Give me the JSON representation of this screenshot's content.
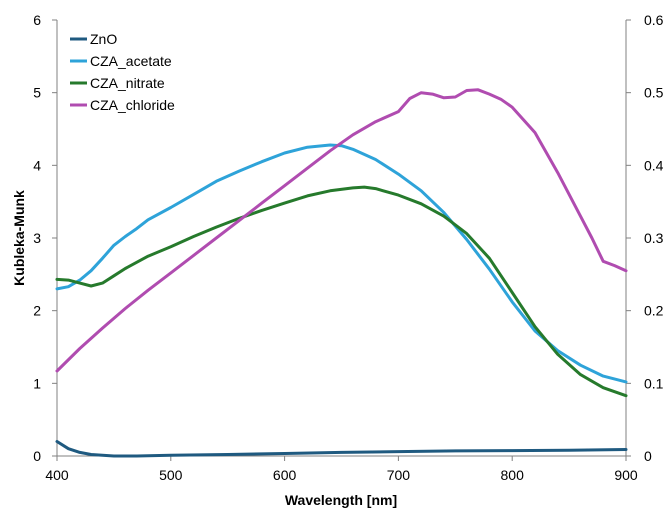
{
  "chart_data": {
    "type": "line",
    "title": "",
    "xlabel": "Wavelength [nm]",
    "ylabel": "Kubleka-Munk",
    "y2label": "",
    "xlim": [
      400,
      900
    ],
    "ylim": [
      0,
      6
    ],
    "y2lim": [
      0,
      0.6
    ],
    "grid": false,
    "legend_position": "top-left",
    "x_ticks": [
      "400",
      "500",
      "600",
      "700",
      "800",
      "900"
    ],
    "y_ticks": [
      "0",
      "1",
      "2",
      "3",
      "4",
      "5",
      "6"
    ],
    "y2_ticks": [
      "0",
      "0.1",
      "0.2",
      "0.3",
      "0.4",
      "0.5",
      "0.6"
    ],
    "series": [
      {
        "name": "ZnO",
        "color": "#1f5a80",
        "axis": "left",
        "x": [
          400,
          410,
          420,
          430,
          440,
          450,
          470,
          500,
          550,
          600,
          650,
          700,
          750,
          800,
          850,
          900
        ],
        "y": [
          0.2,
          0.1,
          0.05,
          0.02,
          0.01,
          0.0,
          0.0,
          0.01,
          0.02,
          0.035,
          0.05,
          0.06,
          0.07,
          0.075,
          0.08,
          0.09
        ]
      },
      {
        "name": "CZA_acetate",
        "color": "#2ea3d9",
        "axis": "left",
        "x": [
          400,
          410,
          420,
          430,
          440,
          450,
          460,
          470,
          480,
          500,
          520,
          540,
          560,
          580,
          600,
          620,
          640,
          650,
          660,
          680,
          700,
          720,
          740,
          760,
          780,
          800,
          820,
          840,
          860,
          880,
          900
        ],
        "y": [
          2.3,
          2.33,
          2.42,
          2.55,
          2.72,
          2.9,
          3.02,
          3.13,
          3.25,
          3.42,
          3.6,
          3.78,
          3.92,
          4.05,
          4.17,
          4.25,
          4.28,
          4.27,
          4.22,
          4.08,
          3.88,
          3.65,
          3.35,
          2.98,
          2.57,
          2.12,
          1.72,
          1.45,
          1.25,
          1.1,
          1.02
        ]
      },
      {
        "name": "CZA_nitrate",
        "color": "#267a2c",
        "axis": "left",
        "x": [
          400,
          410,
          420,
          430,
          440,
          450,
          460,
          480,
          500,
          520,
          540,
          560,
          580,
          600,
          620,
          640,
          660,
          670,
          680,
          700,
          720,
          740,
          760,
          780,
          800,
          820,
          840,
          860,
          880,
          900
        ],
        "y": [
          2.43,
          2.42,
          2.38,
          2.34,
          2.38,
          2.48,
          2.58,
          2.75,
          2.88,
          3.02,
          3.15,
          3.27,
          3.38,
          3.48,
          3.58,
          3.65,
          3.69,
          3.7,
          3.68,
          3.59,
          3.47,
          3.3,
          3.06,
          2.72,
          2.25,
          1.78,
          1.4,
          1.12,
          0.94,
          0.83
        ]
      },
      {
        "name": "CZA_chloride",
        "color": "#b04cb0",
        "axis": "left",
        "x": [
          400,
          420,
          440,
          460,
          480,
          500,
          520,
          540,
          560,
          580,
          600,
          620,
          640,
          660,
          680,
          700,
          710,
          720,
          730,
          740,
          750,
          760,
          770,
          780,
          790,
          800,
          820,
          840,
          860,
          870,
          880,
          890,
          900
        ],
        "y": [
          1.17,
          1.48,
          1.76,
          2.03,
          2.28,
          2.52,
          2.76,
          3.0,
          3.24,
          3.48,
          3.72,
          3.96,
          4.2,
          4.42,
          4.6,
          4.74,
          4.92,
          5.0,
          4.98,
          4.93,
          4.94,
          5.03,
          5.04,
          4.98,
          4.91,
          4.8,
          4.45,
          3.9,
          3.3,
          3.0,
          2.68,
          2.62,
          2.55
        ]
      }
    ]
  }
}
